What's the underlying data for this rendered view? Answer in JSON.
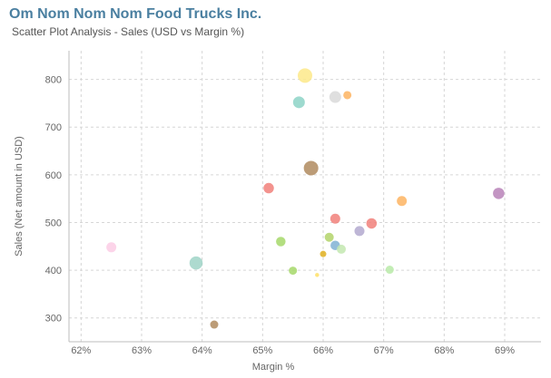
{
  "header": {
    "title": "Om Nom Nom Nom Food Trucks Inc.",
    "subtitle": "Scatter Plot Analysis - Sales (USD vs Margin %)"
  },
  "chart_data": {
    "type": "scatter",
    "title": "Om Nom Nom Nom Food Trucks Inc.",
    "subtitle": "Scatter Plot Analysis - Sales (USD vs Margin %)",
    "xlabel": "Margin %",
    "ylabel": "Sales (Net amount in USD)",
    "xlim": [
      61.8,
      69.6
    ],
    "ylim": [
      250,
      860
    ],
    "xticks": [
      62,
      63,
      64,
      65,
      66,
      67,
      68,
      69
    ],
    "xtick_labels": [
      "62%",
      "63%",
      "64%",
      "65%",
      "66%",
      "67%",
      "68%",
      "69%"
    ],
    "yticks": [
      300,
      400,
      500,
      600,
      700,
      800
    ],
    "ytick_labels": [
      "300",
      "400",
      "500",
      "600",
      "700",
      "800"
    ],
    "grid": true,
    "legend": "none",
    "points": [
      {
        "x": 65.7,
        "y": 808,
        "size": 3.2,
        "color": "#fde98a"
      },
      {
        "x": 66.2,
        "y": 763,
        "size": 2.6,
        "color": "#d9d9d9"
      },
      {
        "x": 66.4,
        "y": 767,
        "size": 1.8,
        "color": "#fdb462"
      },
      {
        "x": 65.6,
        "y": 752,
        "size": 2.6,
        "color": "#8dd3c7"
      },
      {
        "x": 65.8,
        "y": 614,
        "size": 3.2,
        "color": "#b08b5f"
      },
      {
        "x": 65.1,
        "y": 572,
        "size": 2.3,
        "color": "#f1807a"
      },
      {
        "x": 67.3,
        "y": 545,
        "size": 2.2,
        "color": "#fdb462"
      },
      {
        "x": 68.9,
        "y": 561,
        "size": 2.5,
        "color": "#b883b8"
      },
      {
        "x": 66.2,
        "y": 508,
        "size": 2.2,
        "color": "#f1807a"
      },
      {
        "x": 66.8,
        "y": 498,
        "size": 2.3,
        "color": "#f1807a"
      },
      {
        "x": 66.6,
        "y": 482,
        "size": 2.2,
        "color": "#b3a9cf"
      },
      {
        "x": 66.1,
        "y": 469,
        "size": 2.0,
        "color": "#b3d46a"
      },
      {
        "x": 65.3,
        "y": 460,
        "size": 2.1,
        "color": "#a6d86a"
      },
      {
        "x": 66.2,
        "y": 452,
        "size": 2.1,
        "color": "#80b1d3"
      },
      {
        "x": 66.3,
        "y": 444,
        "size": 2.0,
        "color": "#c3e8b0"
      },
      {
        "x": 62.5,
        "y": 448,
        "size": 2.2,
        "color": "#fccde5"
      },
      {
        "x": 66.0,
        "y": 434,
        "size": 1.4,
        "color": "#e0b020"
      },
      {
        "x": 63.9,
        "y": 415,
        "size": 2.9,
        "color": "#9fd3c7"
      },
      {
        "x": 67.1,
        "y": 401,
        "size": 1.8,
        "color": "#b8eaa8"
      },
      {
        "x": 65.5,
        "y": 399,
        "size": 1.8,
        "color": "#a6d86a"
      },
      {
        "x": 65.9,
        "y": 390,
        "size": 0.9,
        "color": "#ffe066"
      },
      {
        "x": 64.2,
        "y": 286,
        "size": 1.8,
        "color": "#b08b5f"
      }
    ]
  }
}
